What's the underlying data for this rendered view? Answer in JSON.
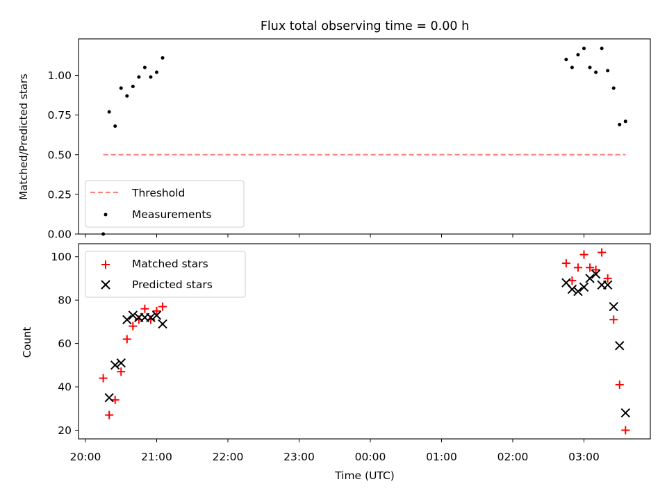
{
  "chart_data": [
    {
      "type": "scatter",
      "title": "Flux total observing time = 0.00 h",
      "xlabel": "",
      "ylabel": "Matched/Predicted stars",
      "ylim": [
        0,
        1.23
      ],
      "yticks": [
        0.0,
        0.25,
        0.5,
        0.75,
        1.0
      ],
      "ytick_labels": [
        "0.00",
        "0.25",
        "0.50",
        "0.75",
        "1.00"
      ],
      "legend_position": "lower-left",
      "legend": [
        "Threshold",
        "Measurements"
      ],
      "threshold": {
        "name": "Threshold",
        "color": "#ff8080",
        "style": "dashed",
        "value": 0.5,
        "x_start": "20:15",
        "x_end": "03:35"
      },
      "series": [
        {
          "name": "Measurements",
          "color": "#000000",
          "marker": "dot",
          "points": [
            [
              "20:15",
              0.0
            ],
            [
              "20:20",
              0.77
            ],
            [
              "20:25",
              0.68
            ],
            [
              "20:30",
              0.92
            ],
            [
              "20:35",
              0.87
            ],
            [
              "20:40",
              0.93
            ],
            [
              "20:45",
              0.99
            ],
            [
              "20:50",
              1.05
            ],
            [
              "20:55",
              0.99
            ],
            [
              "21:00",
              1.02
            ],
            [
              "21:05",
              1.11
            ],
            [
              "02:45",
              1.1
            ],
            [
              "02:50",
              1.05
            ],
            [
              "02:55",
              1.13
            ],
            [
              "03:00",
              1.17
            ],
            [
              "03:05",
              1.05
            ],
            [
              "03:10",
              1.02
            ],
            [
              "03:15",
              1.17
            ],
            [
              "03:20",
              1.03
            ],
            [
              "03:25",
              0.92
            ],
            [
              "03:30",
              0.69
            ],
            [
              "03:35",
              0.71
            ]
          ]
        }
      ]
    },
    {
      "type": "scatter",
      "title": "",
      "xlabel": "Time (UTC)",
      "ylabel": "Count",
      "ylim": [
        16,
        106
      ],
      "yticks": [
        20,
        40,
        60,
        80,
        100
      ],
      "xticks": [
        "20:00",
        "21:00",
        "22:00",
        "23:00",
        "00:00",
        "01:00",
        "02:00",
        "03:00"
      ],
      "legend_position": "upper-left",
      "legend": [
        "Matched stars",
        "Predicted stars"
      ],
      "series": [
        {
          "name": "Matched stars",
          "color": "#ff0000",
          "marker": "plus",
          "points": [
            [
              "20:15",
              44
            ],
            [
              "20:20",
              27
            ],
            [
              "20:25",
              34
            ],
            [
              "20:30",
              47
            ],
            [
              "20:35",
              62
            ],
            [
              "20:40",
              68
            ],
            [
              "20:45",
              71
            ],
            [
              "20:50",
              76
            ],
            [
              "20:55",
              71
            ],
            [
              "21:00",
              75
            ],
            [
              "21:05",
              77
            ],
            [
              "02:45",
              97
            ],
            [
              "02:50",
              89
            ],
            [
              "02:55",
              95
            ],
            [
              "03:00",
              101
            ],
            [
              "03:05",
              95
            ],
            [
              "03:10",
              94
            ],
            [
              "03:15",
              102
            ],
            [
              "03:20",
              90
            ],
            [
              "03:25",
              71
            ],
            [
              "03:30",
              41
            ],
            [
              "03:35",
              20
            ]
          ]
        },
        {
          "name": "Predicted stars",
          "color": "#000000",
          "marker": "x",
          "points": [
            [
              "20:20",
              35
            ],
            [
              "20:25",
              50
            ],
            [
              "20:30",
              51
            ],
            [
              "20:35",
              71
            ],
            [
              "20:40",
              73
            ],
            [
              "20:45",
              72
            ],
            [
              "20:50",
              72
            ],
            [
              "20:55",
              72
            ],
            [
              "21:00",
              73
            ],
            [
              "21:05",
              69
            ],
            [
              "02:45",
              88
            ],
            [
              "02:50",
              85
            ],
            [
              "02:55",
              84
            ],
            [
              "03:00",
              86
            ],
            [
              "03:05",
              90
            ],
            [
              "03:10",
              92
            ],
            [
              "03:15",
              87
            ],
            [
              "03:20",
              87
            ],
            [
              "03:25",
              77
            ],
            [
              "03:30",
              59
            ],
            [
              "03:35",
              28
            ]
          ]
        }
      ]
    }
  ]
}
